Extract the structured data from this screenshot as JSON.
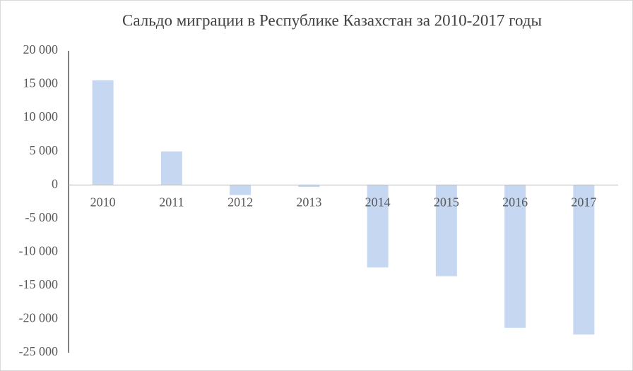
{
  "chart_data": {
    "type": "bar",
    "title": "Сальдо миграции в Республике Казахстан за 2010-2017  годы",
    "categories": [
      "2010",
      "2011",
      "2012",
      "2013",
      "2014",
      "2015",
      "2016",
      "2017"
    ],
    "values": [
      15600,
      5000,
      -1500,
      -300,
      -12300,
      -13600,
      -21300,
      -22300
    ],
    "color": "#c6d8f1",
    "ylim": [
      -25000,
      20000
    ],
    "yticks": [
      {
        "value": -25000,
        "label": "-25 000"
      },
      {
        "value": -20000,
        "label": "-20 000"
      },
      {
        "value": -15000,
        "label": "-15 000"
      },
      {
        "value": -10000,
        "label": "-10 000"
      },
      {
        "value": -5000,
        "label": "-5 000"
      },
      0,
      {
        "value": 5000,
        "label": "5 000"
      },
      {
        "value": 10000,
        "label": "10 000"
      },
      {
        "value": 15000,
        "label": "15 000"
      },
      {
        "value": 20000,
        "label": "20 000"
      }
    ],
    "grid": false
  }
}
